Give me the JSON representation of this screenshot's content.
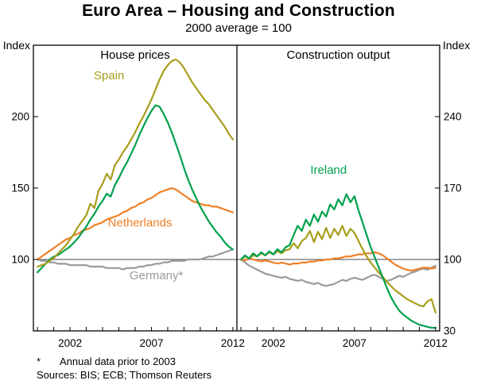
{
  "title": "Euro Area – Housing and Construction",
  "subtitle": "2000 average = 100",
  "footnote_star": "*",
  "footnote_text": "Annual data prior to 2003",
  "sources": "Sources: BIS; ECB; Thomson Reuters",
  "chart_data": {
    "type": "line",
    "title": "Euro Area – Housing and Construction",
    "subtitle": "2000 average = 100",
    "axis_unit_label": "Index",
    "grid": false,
    "reference_line": 100,
    "x_axis": {
      "range": [
        1999.75,
        2012.25
      ],
      "minor_ticks": [
        2000,
        2001,
        2002,
        2003,
        2004,
        2005,
        2006,
        2007,
        2008,
        2009,
        2010,
        2011,
        2012
      ],
      "labeled_ticks": [
        "2002",
        "2007",
        "2012"
      ],
      "labeled_tick_years": [
        2002,
        2007,
        2012
      ]
    },
    "colors": {
      "spain": "#a79e1c",
      "ireland": "#00a04d",
      "netherlands": "#f07f26",
      "germany": "#9a9a9a",
      "frame": "#000000",
      "reference": "#4a4a4a"
    },
    "panels": [
      {
        "title": "House prices",
        "axis_side": "left",
        "ylim": [
          50,
          250
        ],
        "yticks": [
          100,
          150,
          200
        ],
        "series": [
          {
            "name": "Germany",
            "color": "#9a9a9a",
            "start": 2000,
            "step": 0.25,
            "values": [
              100,
              99,
              99,
              98,
              98,
              97,
              97,
              97,
              96,
              96,
              96,
              96,
              96,
              95,
              95,
              95,
              95,
              94,
              94,
              94,
              94,
              93,
              94,
              94,
              94,
              95,
              95,
              96,
              96,
              97,
              97,
              98,
              98,
              99,
              99,
              99,
              99,
              100,
              100,
              100,
              100,
              101,
              102,
              102,
              103,
              104,
              105,
              106,
              107
            ]
          },
          {
            "name": "Netherlands",
            "color": "#f07f26",
            "start": 2000,
            "step": 0.25,
            "values": [
              100,
              102,
              104,
              106,
              108,
              110,
              112,
              114,
              115,
              117,
              118,
              120,
              121,
              122,
              124,
              125,
              126,
              128,
              129,
              130,
              131,
              133,
              134,
              136,
              137,
              139,
              140,
              142,
              143,
              145,
              147,
              148,
              149,
              150,
              149,
              147,
              145,
              143,
              141,
              140,
              139,
              138,
              138,
              137,
              137,
              136,
              135,
              134,
              133
            ]
          },
          {
            "name": "Ireland",
            "color": "#00a04d",
            "start": 2000,
            "step": 0.25,
            "values": [
              91,
              94,
              97,
              100,
              102,
              103,
              105,
              107,
              109,
              112,
              115,
              119,
              123,
              128,
              132,
              137,
              141,
              146,
              144,
              152,
              157,
              163,
              168,
              174,
              180,
              187,
              193,
              199,
              204,
              208,
              207,
              202,
              196,
              189,
              181,
              173,
              164,
              156,
              149,
              143,
              137,
              132,
              127,
              123,
              119,
              116,
              112,
              109,
              107
            ]
          },
          {
            "name": "Spain",
            "color": "#a79e1c",
            "start": 2000,
            "step": 0.25,
            "values": [
              95,
              96,
              97,
              99,
              101,
              104,
              107,
              110,
              114,
              118,
              123,
              127,
              131,
              139,
              136,
              148,
              153,
              160,
              156,
              166,
              170,
              175,
              179,
              184,
              189,
              195,
              200,
              206,
              212,
              219,
              226,
              232,
              236,
              239,
              240,
              238,
              234,
              229,
              224,
              220,
              216,
              212,
              209,
              205,
              201,
              197,
              193,
              188,
              184
            ]
          }
        ],
        "annotations": [
          {
            "text": "Spain",
            "x": 2004.4,
            "y": 226,
            "color": "#a79e1c"
          },
          {
            "text": "Netherlands",
            "x": 2006.3,
            "y": 123,
            "color": "#f07f26"
          },
          {
            "text": "Germany*",
            "x": 2007.3,
            "y": 86,
            "color": "#9a9a9a"
          }
        ]
      },
      {
        "title": "Construction output",
        "axis_side": "right",
        "ylim": [
          30,
          310
        ],
        "yticks": [
          30,
          100,
          170,
          240
        ],
        "series": [
          {
            "name": "Germany",
            "color": "#9a9a9a",
            "start": 2000,
            "step": 0.25,
            "values": [
              100,
              97,
              94,
              92,
              90,
              88,
              86,
              85,
              84,
              83,
              82,
              83,
              81,
              80,
              79,
              80,
              78,
              77,
              76,
              77,
              75,
              74,
              75,
              76,
              78,
              80,
              79,
              81,
              82,
              81,
              80,
              82,
              84,
              85,
              83,
              81,
              79,
              80,
              82,
              84,
              83,
              85,
              87,
              88,
              90,
              91,
              90,
              92,
              94
            ]
          },
          {
            "name": "Netherlands",
            "color": "#f07f26",
            "start": 2000,
            "step": 0.25,
            "values": [
              100,
              99,
              101,
              100,
              99,
              98,
              99,
              98,
              97,
              96,
              97,
              96,
              95,
              96,
              96,
              97,
              97,
              98,
              98,
              99,
              99,
              100,
              100,
              101,
              101,
              102,
              103,
              103,
              104,
              105,
              105,
              106,
              106,
              107,
              106,
              104,
              101,
              98,
              95,
              93,
              91,
              90,
              89,
              90,
              91,
              92,
              92,
              91,
              92
            ]
          },
          {
            "name": "Spain",
            "color": "#a79e1c",
            "start": 2000,
            "step": 0.25,
            "values": [
              100,
              103,
              101,
              104,
              103,
              106,
              104,
              107,
              105,
              108,
              106,
              109,
              110,
              116,
              111,
              118,
              121,
              128,
              117,
              127,
              120,
              131,
              121,
              130,
              124,
              133,
              123,
              130,
              126,
              118,
              110,
              103,
              97,
              92,
              87,
              83,
              78,
              74,
              70,
              67,
              64,
              61,
              59,
              57,
              55,
              54,
              59,
              61,
              48
            ]
          },
          {
            "name": "Ireland",
            "color": "#00a04d",
            "start": 2000,
            "step": 0.25,
            "values": [
              100,
              104,
              101,
              106,
              103,
              107,
              104,
              108,
              105,
              110,
              107,
              112,
              114,
              124,
              133,
              128,
              139,
              133,
              144,
              137,
              147,
              142,
              154,
              149,
              159,
              153,
              164,
              156,
              162,
              148,
              136,
              124,
              112,
              102,
              92,
              82,
              72,
              63,
              56,
              50,
              46,
              43,
              40,
              38,
              36,
              35,
              34,
              33,
              33
            ]
          }
        ],
        "annotations": [
          {
            "text": "Ireland",
            "x": 2005.4,
            "y": 184,
            "color": "#00a04d"
          }
        ]
      }
    ]
  }
}
